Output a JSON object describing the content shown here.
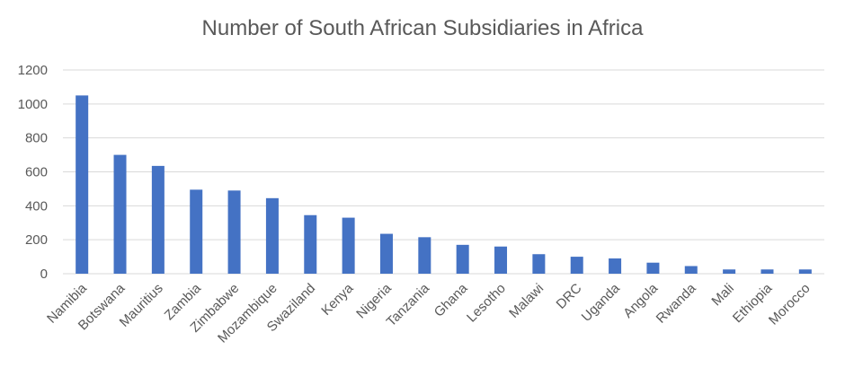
{
  "chart_data": {
    "type": "bar",
    "title": "Number of South African Subsidiaries in Africa",
    "xlabel": "",
    "ylabel": "",
    "categories": [
      "Namibia",
      "Botswana",
      "Mauritius",
      "Zambia",
      "Zimbabwe",
      "Mozambique",
      "Swaziland",
      "Kenya",
      "Nigeria",
      "Tanzania",
      "Ghana",
      "Lesotho",
      "Malawi",
      "DRC",
      "Uganda",
      "Angola",
      "Rwanda",
      "Mali",
      "Ethiopia",
      "Morocco"
    ],
    "values": [
      1050,
      700,
      635,
      495,
      490,
      445,
      345,
      330,
      235,
      215,
      170,
      160,
      115,
      100,
      90,
      65,
      45,
      25,
      25,
      25
    ],
    "ylim": [
      0,
      1200
    ],
    "yticks": [
      0,
      200,
      400,
      600,
      800,
      1000,
      1200
    ],
    "grid": true,
    "legend": "none",
    "bar_color": "#4472C4",
    "grid_color": "#D9D9D9"
  }
}
